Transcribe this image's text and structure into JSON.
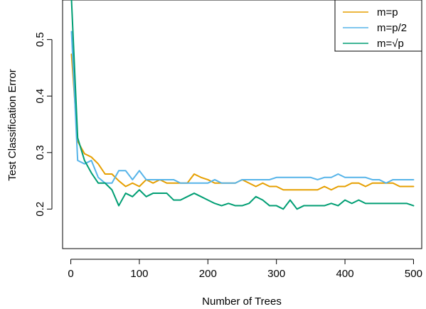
{
  "chart_data": {
    "type": "line",
    "xlabel": "Number of Trees",
    "ylabel": "Test Classification Error",
    "xlim": [
      -12,
      512
    ],
    "ylim": [
      0.13,
      0.57
    ],
    "x_ticks": [
      0,
      100,
      200,
      300,
      400,
      500
    ],
    "y_ticks": [
      0.2,
      0.3,
      0.4,
      0.5
    ],
    "x_tick_labels": [
      "0",
      "100",
      "200",
      "300",
      "400",
      "500"
    ],
    "y_tick_labels": [
      "0.2",
      "0.3",
      "0.4",
      "0.5"
    ],
    "grid": false,
    "legend_position": "top-right",
    "x": [
      1,
      10,
      20,
      30,
      40,
      50,
      60,
      70,
      80,
      90,
      100,
      110,
      120,
      130,
      140,
      150,
      160,
      170,
      180,
      190,
      200,
      210,
      220,
      230,
      240,
      250,
      260,
      270,
      280,
      290,
      300,
      310,
      320,
      330,
      340,
      350,
      360,
      370,
      380,
      390,
      400,
      410,
      420,
      430,
      440,
      450,
      460,
      470,
      480,
      490,
      500
    ],
    "series": [
      {
        "name": "m=p",
        "color": "#E69F00",
        "values": [
          0.474,
          0.32,
          0.298,
          0.292,
          0.28,
          0.262,
          0.262,
          0.25,
          0.24,
          0.246,
          0.24,
          0.252,
          0.246,
          0.252,
          0.246,
          0.246,
          0.246,
          0.246,
          0.262,
          0.256,
          0.252,
          0.246,
          0.246,
          0.246,
          0.246,
          0.252,
          0.246,
          0.24,
          0.246,
          0.24,
          0.24,
          0.234,
          0.234,
          0.234,
          0.234,
          0.234,
          0.234,
          0.24,
          0.234,
          0.24,
          0.24,
          0.246,
          0.246,
          0.24,
          0.246,
          0.246,
          0.246,
          0.246,
          0.24,
          0.24,
          0.24
        ]
      },
      {
        "name": "m=p/2",
        "color": "#56B4E9",
        "values": [
          0.514,
          0.286,
          0.28,
          0.286,
          0.256,
          0.246,
          0.246,
          0.268,
          0.268,
          0.252,
          0.268,
          0.252,
          0.252,
          0.252,
          0.252,
          0.252,
          0.246,
          0.246,
          0.246,
          0.246,
          0.246,
          0.252,
          0.246,
          0.246,
          0.246,
          0.252,
          0.252,
          0.252,
          0.252,
          0.252,
          0.256,
          0.256,
          0.256,
          0.256,
          0.256,
          0.256,
          0.252,
          0.256,
          0.256,
          0.262,
          0.256,
          0.256,
          0.256,
          0.256,
          0.252,
          0.252,
          0.246,
          0.252,
          0.252,
          0.252,
          0.252
        ]
      },
      {
        "name": "m=√p",
        "color": "#009E73",
        "values": [
          0.57,
          0.326,
          0.286,
          0.264,
          0.246,
          0.246,
          0.234,
          0.206,
          0.228,
          0.222,
          0.234,
          0.222,
          0.228,
          0.228,
          0.228,
          0.216,
          0.216,
          0.222,
          0.228,
          0.222,
          0.216,
          0.21,
          0.206,
          0.21,
          0.206,
          0.206,
          0.21,
          0.222,
          0.216,
          0.206,
          0.206,
          0.2,
          0.216,
          0.2,
          0.206,
          0.206,
          0.206,
          0.206,
          0.21,
          0.206,
          0.216,
          0.21,
          0.216,
          0.21,
          0.21,
          0.21,
          0.21,
          0.21,
          0.21,
          0.21,
          0.206
        ]
      }
    ]
  }
}
